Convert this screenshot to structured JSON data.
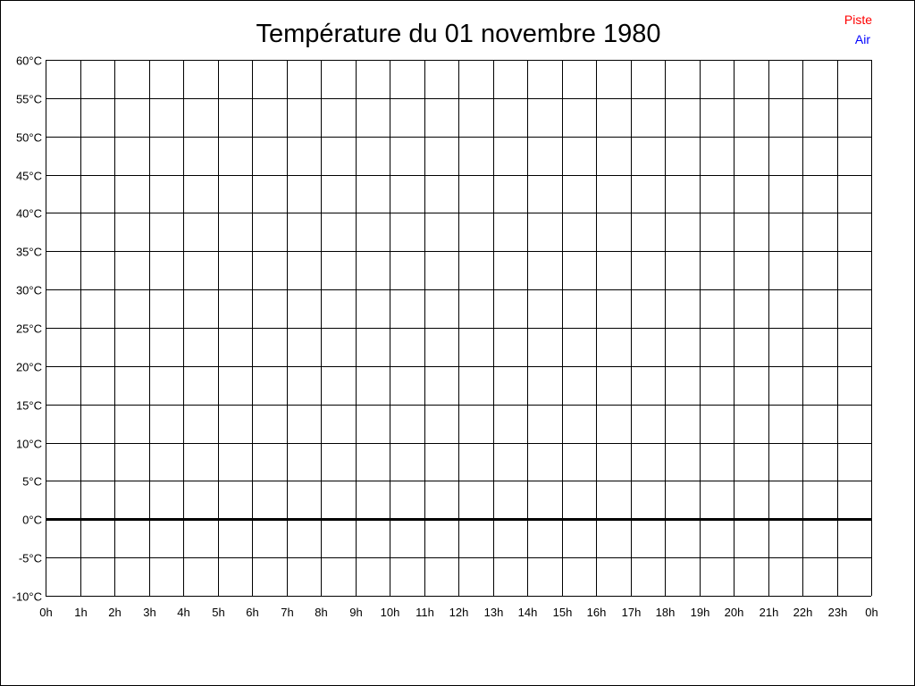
{
  "chart_data": {
    "type": "line",
    "title": "Température du 01 novembre 1980",
    "xlabel": "",
    "ylabel": "",
    "x_ticks": [
      "0h",
      "1h",
      "2h",
      "3h",
      "4h",
      "5h",
      "6h",
      "7h",
      "8h",
      "9h",
      "10h",
      "11h",
      "12h",
      "13h",
      "14h",
      "15h",
      "16h",
      "17h",
      "18h",
      "19h",
      "20h",
      "21h",
      "22h",
      "23h",
      "0h"
    ],
    "y_ticks": [
      "60°C",
      "55°C",
      "50°C",
      "45°C",
      "40°C",
      "35°C",
      "30°C",
      "25°C",
      "20°C",
      "15°C",
      "10°C",
      "5°C",
      "0°C",
      "-5°C",
      "-10°C"
    ],
    "ylim": [
      -10,
      60
    ],
    "xlim": [
      0,
      24
    ],
    "grid": true,
    "legend_position": "top-right",
    "series": [
      {
        "name": "Piste",
        "color": "#ff0000",
        "values": []
      },
      {
        "name": "Air",
        "color": "#0000ff",
        "values": []
      }
    ]
  }
}
